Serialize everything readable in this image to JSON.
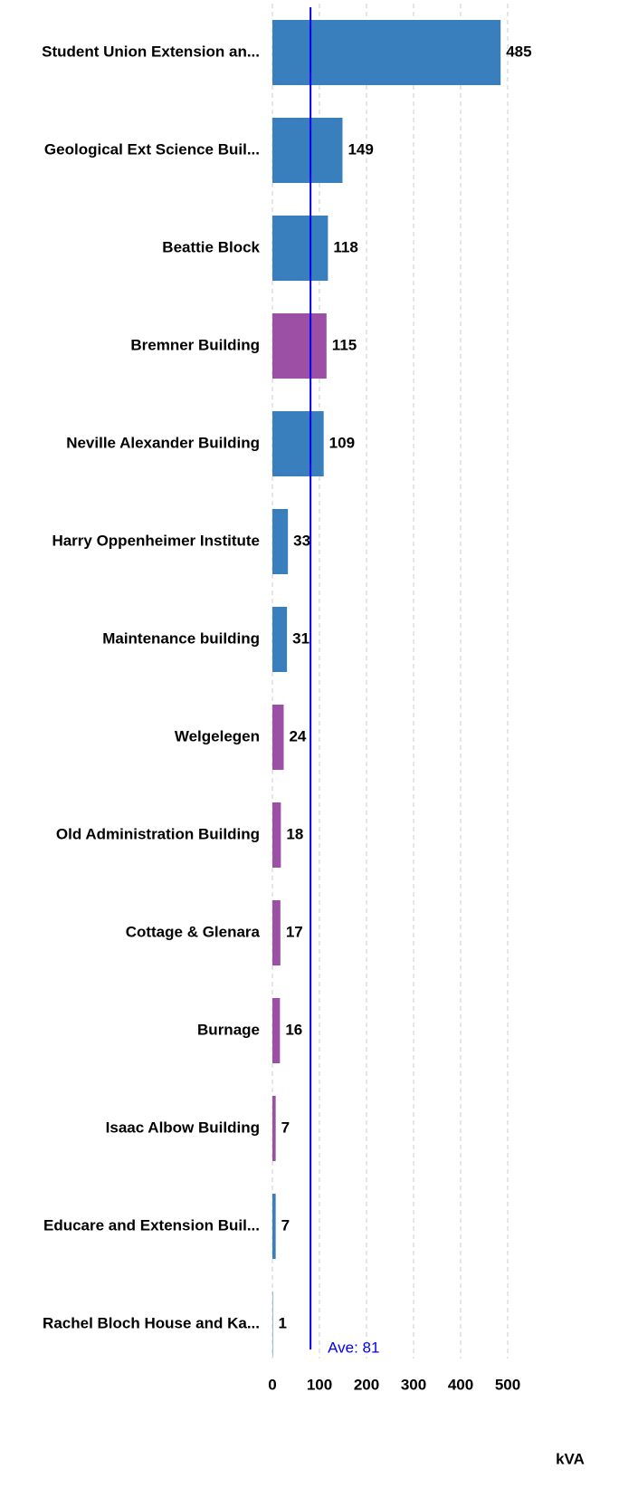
{
  "chart_data": {
    "type": "bar",
    "orientation": "horizontal",
    "categories": [
      "Student Union Extension an...",
      "Geological Ext Science Buil...",
      "Beattie Block",
      "Bremner Building",
      "Neville Alexander Building",
      "Harry Oppenheimer Institute",
      "Maintenance building",
      "Welgelegen",
      "Old Administration Building",
      "Cottage & Glenara",
      "Burnage",
      "Isaac Albow Building",
      "Educare and Extension Buil...",
      "Rachel Bloch House and Ka..."
    ],
    "values": [
      485,
      149,
      118,
      115,
      109,
      33,
      31,
      24,
      18,
      17,
      16,
      7,
      7,
      1
    ],
    "colors": [
      "#3a7fbd",
      "#3a7fbd",
      "#3a7fbd",
      "#9b4fa5",
      "#3a7fbd",
      "#3a7fbd",
      "#3a7fbd",
      "#9b4fa5",
      "#9b4fa5",
      "#9b4fa5",
      "#9b4fa5",
      "#9b4fa5",
      "#3a7fbd",
      "#3a7fbd"
    ],
    "xlim": [
      0,
      570
    ],
    "xticks": [
      0,
      100,
      200,
      300,
      400,
      500
    ],
    "grid": true,
    "xlabel": "kVA",
    "average": {
      "value": 81,
      "label": "Ave: 81",
      "color": "#0000ee"
    }
  }
}
